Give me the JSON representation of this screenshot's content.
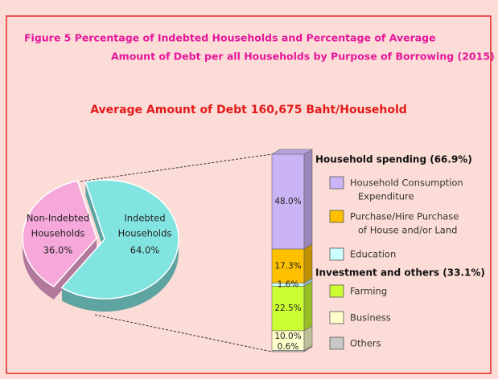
{
  "chart_data": {
    "type": "pie",
    "title_lines": [
      "Figure  5   Percentage of Indebted Households and Percentage of Average",
      "Amount of Debt per all Households by Purpose of Borrowing (2015)"
    ],
    "subtitle": "Average Amount of Debt 160,675 Baht/Household",
    "pie": {
      "labels": [
        [
          "Non-Indebted",
          "Households"
        ],
        [
          "Indebted",
          "Households"
        ]
      ],
      "values": [
        36.0,
        64.0
      ],
      "value_labels": [
        "36.0%",
        "64.0%"
      ],
      "colors": [
        "#f7a8da",
        "#82e4e0"
      ]
    },
    "bar": {
      "groups": [
        "Household spending (66.9%)",
        "Investment and others (33.1%)"
      ],
      "group_of": [
        0,
        0,
        0,
        1,
        1,
        1
      ],
      "names": [
        [
          "Household Consumption",
          "Expenditure"
        ],
        [
          "Purchase/Hire Purchase",
          "of House and/or Land"
        ],
        [
          "Education"
        ],
        [
          "Farming"
        ],
        [
          "Business"
        ],
        [
          "Others"
        ]
      ],
      "values": [
        48.0,
        17.3,
        1.6,
        22.5,
        10.0,
        0.6
      ],
      "value_labels": [
        "48.0%",
        "17.3%",
        "1.6%",
        "22.5%",
        "10.0%",
        "0.6%"
      ],
      "colors": [
        "#cbb4f5",
        "#ffc000",
        "#ccffff",
        "#ccff33",
        "#ffffcc",
        "#c8c8c8"
      ]
    }
  }
}
